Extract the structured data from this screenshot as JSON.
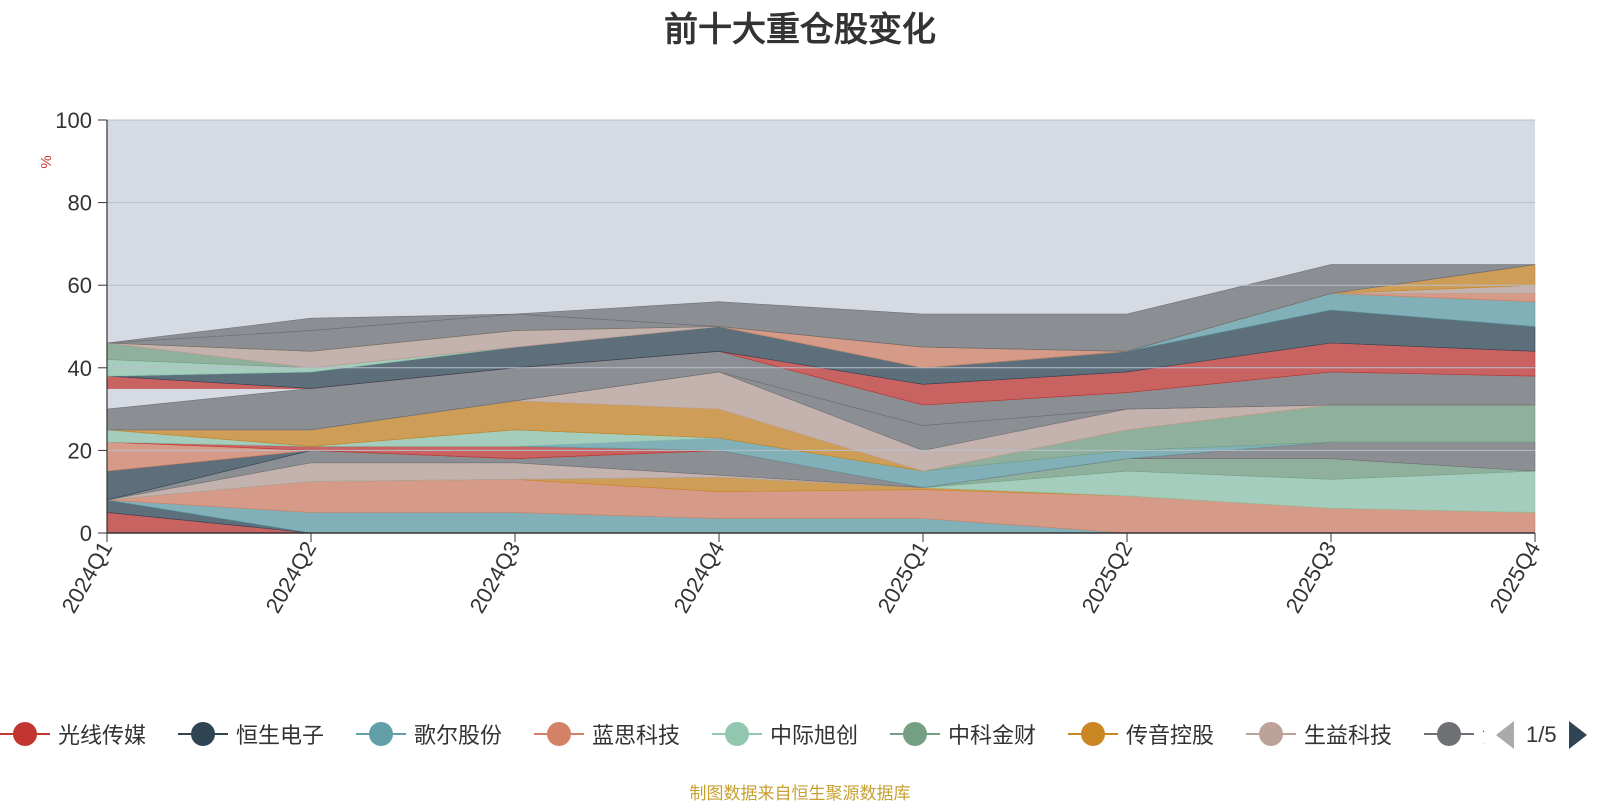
{
  "title": "前十大重仓股变化",
  "source_note": "制图数据来自恒生聚源数据库",
  "legend_page": "1/5",
  "legend": [
    {
      "name": "光线传媒",
      "color": "#c23531"
    },
    {
      "name": "恒生电子",
      "color": "#2f4554"
    },
    {
      "name": "歌尔股份",
      "color": "#61a0a8"
    },
    {
      "name": "蓝思科技",
      "color": "#d48265"
    },
    {
      "name": "中际旭创",
      "color": "#91c7ae"
    },
    {
      "name": "中科金财",
      "color": "#749f83"
    },
    {
      "name": "传音控股",
      "color": "#ca8622"
    },
    {
      "name": "生益科技",
      "color": "#bda29a"
    },
    {
      "name": "沪",
      "color": "#6e7074"
    }
  ],
  "chart_data": {
    "type": "area",
    "title": "前十大重仓股变化",
    "ylabel": "%",
    "ylim": [
      0,
      100
    ],
    "yticks": [
      0,
      20,
      40,
      60,
      80,
      100
    ],
    "categories": [
      "2024Q1",
      "2024Q2",
      "2024Q3",
      "2024Q4",
      "2025Q1",
      "2025Q2",
      "2025Q3",
      "2025Q4"
    ],
    "grid": true,
    "legend_position": "bottom",
    "plot_background": "#d6dbe3",
    "layers": [
      {
        "color": "#c23531",
        "values": [
          [
            0,
            5
          ],
          [
            0,
            0
          ],
          [
            0,
            0
          ],
          [
            0,
            0
          ],
          [
            0,
            0
          ],
          [
            0,
            0
          ],
          [
            0,
            0
          ],
          [
            0,
            0
          ]
        ]
      },
      {
        "color": "#2f4554",
        "values": [
          [
            5,
            8
          ],
          [
            0,
            0
          ],
          [
            0,
            0
          ],
          [
            0,
            0
          ],
          [
            0,
            0
          ],
          [
            0,
            0
          ],
          [
            0,
            0
          ],
          [
            0,
            0
          ]
        ]
      },
      {
        "color": "#61a0a8",
        "values": [
          [
            8,
            8
          ],
          [
            0,
            5
          ],
          [
            0,
            5
          ],
          [
            0,
            3.5
          ],
          [
            0,
            3.5
          ],
          [
            0,
            0
          ],
          [
            0,
            0
          ],
          [
            0,
            0
          ]
        ]
      },
      {
        "color": "#d48265",
        "values": [
          [
            8,
            8
          ],
          [
            5,
            12.5
          ],
          [
            5,
            13
          ],
          [
            3.5,
            10
          ],
          [
            3.5,
            10.5
          ],
          [
            0,
            9
          ],
          [
            0,
            6
          ],
          [
            0,
            5
          ]
        ]
      },
      {
        "color": "#ca8622",
        "values": [
          [
            8,
            8
          ],
          [
            12.5,
            12.5
          ],
          [
            13,
            13
          ],
          [
            10,
            13.5
          ],
          [
            10.5,
            11
          ],
          [
            9,
            9
          ],
          [
            6,
            6
          ],
          [
            5,
            5
          ]
        ]
      },
      {
        "color": "#91c7ae",
        "values": [
          [
            8,
            8
          ],
          [
            12.5,
            12.5
          ],
          [
            13,
            13
          ],
          [
            13.5,
            13.5
          ],
          [
            11,
            11
          ],
          [
            9,
            15
          ],
          [
            6,
            13
          ],
          [
            5,
            15
          ]
        ]
      },
      {
        "color": "#749f83",
        "values": [
          [
            8,
            8
          ],
          [
            12.5,
            12.5
          ],
          [
            13,
            13
          ],
          [
            13.5,
            13.5
          ],
          [
            11,
            11
          ],
          [
            15,
            18
          ],
          [
            13,
            18
          ],
          [
            15,
            15
          ]
        ]
      },
      {
        "color": "#bda29a",
        "values": [
          [
            8,
            8
          ],
          [
            12.5,
            17
          ],
          [
            13,
            17
          ],
          [
            13.5,
            14
          ],
          [
            11,
            11
          ],
          [
            18,
            18
          ],
          [
            18,
            18
          ],
          [
            15,
            15
          ]
        ]
      },
      {
        "color": "#6e7074",
        "values": [
          [
            8,
            8
          ],
          [
            17,
            20
          ],
          [
            17,
            18
          ],
          [
            14,
            20
          ],
          [
            11,
            11
          ],
          [
            18,
            18
          ],
          [
            18,
            22
          ],
          [
            15,
            22
          ]
        ]
      },
      {
        "color": "#2f4554",
        "values": [
          [
            8,
            15
          ],
          [
            20,
            20
          ],
          [
            18,
            18
          ],
          [
            20,
            20
          ],
          [
            11,
            11
          ],
          [
            18,
            18
          ],
          [
            22,
            22
          ],
          [
            22,
            22
          ]
        ]
      },
      {
        "color": "#d48265",
        "values": [
          [
            15,
            22
          ],
          [
            20,
            20
          ],
          [
            18,
            18
          ],
          [
            20,
            20
          ],
          [
            11,
            11
          ],
          [
            18,
            18
          ],
          [
            22,
            22
          ],
          [
            22,
            22
          ]
        ]
      },
      {
        "color": "#c23531",
        "values": [
          [
            22,
            22
          ],
          [
            20,
            21
          ],
          [
            18,
            21
          ],
          [
            20,
            20
          ],
          [
            11,
            11
          ],
          [
            18,
            18
          ],
          [
            22,
            22
          ],
          [
            22,
            22
          ]
        ]
      },
      {
        "color": "#61a0a8",
        "values": [
          [
            22,
            22
          ],
          [
            21,
            21
          ],
          [
            21,
            21
          ],
          [
            20,
            23
          ],
          [
            11,
            15
          ],
          [
            18,
            20
          ],
          [
            22,
            22
          ],
          [
            22,
            22
          ]
        ]
      },
      {
        "color": "#91c7ae",
        "values": [
          [
            22,
            25
          ],
          [
            21,
            21
          ],
          [
            21,
            25
          ],
          [
            23,
            23
          ],
          [
            15,
            15
          ],
          [
            20,
            20
          ],
          [
            22,
            22
          ],
          [
            22,
            22
          ]
        ]
      },
      {
        "color": "#749f83",
        "values": [
          [
            25,
            25
          ],
          [
            21,
            21
          ],
          [
            25,
            25
          ],
          [
            23,
            23
          ],
          [
            15,
            15
          ],
          [
            20,
            25
          ],
          [
            22,
            31
          ],
          [
            22,
            31
          ]
        ]
      },
      {
        "color": "#ca8622",
        "values": [
          [
            25,
            25
          ],
          [
            21,
            25
          ],
          [
            25,
            32
          ],
          [
            23,
            30
          ],
          [
            15,
            15
          ],
          [
            25,
            25
          ],
          [
            31,
            31
          ],
          [
            31,
            31
          ]
        ]
      },
      {
        "color": "#bda29a",
        "values": [
          [
            25,
            25
          ],
          [
            25,
            25
          ],
          [
            32,
            32
          ],
          [
            30,
            39
          ],
          [
            15,
            20
          ],
          [
            25,
            30
          ],
          [
            31,
            31
          ],
          [
            31,
            31
          ]
        ]
      },
      {
        "color": "#6e7074",
        "values": [
          [
            25,
            25
          ],
          [
            25,
            25
          ],
          [
            32,
            32
          ],
          [
            39,
            39
          ],
          [
            20,
            26
          ],
          [
            30,
            30
          ],
          [
            31,
            31
          ],
          [
            31,
            31
          ]
        ]
      },
      {
        "color": "#6e7074",
        "values": [
          [
            25,
            30
          ],
          [
            25,
            35
          ],
          [
            32,
            40
          ],
          [
            39,
            44
          ],
          [
            26,
            31
          ],
          [
            30,
            34
          ],
          [
            31,
            39
          ],
          [
            31,
            38
          ]
        ]
      },
      {
        "color": "#c23531",
        "values": [
          [
            35,
            38
          ],
          [
            35,
            35
          ],
          [
            40,
            40
          ],
          [
            44,
            44
          ],
          [
            31,
            36
          ],
          [
            34,
            39
          ],
          [
            39,
            46
          ],
          [
            38,
            44
          ]
        ]
      },
      {
        "color": "#2f4554",
        "values": [
          [
            38,
            38
          ],
          [
            35,
            39
          ],
          [
            40,
            45
          ],
          [
            44,
            50
          ],
          [
            36,
            40
          ],
          [
            39,
            44
          ],
          [
            46,
            54
          ],
          [
            44,
            50
          ]
        ]
      },
      {
        "color": "#61a0a8",
        "values": [
          [
            38,
            38
          ],
          [
            39,
            39
          ],
          [
            45,
            45
          ],
          [
            50,
            50
          ],
          [
            40,
            40
          ],
          [
            44,
            44
          ],
          [
            54,
            58
          ],
          [
            50,
            56
          ]
        ]
      },
      {
        "color": "#91c7ae",
        "values": [
          [
            38,
            42
          ],
          [
            39,
            40
          ],
          [
            45,
            45
          ],
          [
            50,
            50
          ],
          [
            40,
            40
          ],
          [
            44,
            44
          ],
          [
            58,
            58
          ],
          [
            56,
            56
          ]
        ]
      },
      {
        "color": "#749f83",
        "values": [
          [
            42,
            46
          ],
          [
            40,
            40
          ],
          [
            45,
            45
          ],
          [
            50,
            50
          ],
          [
            40,
            40
          ],
          [
            44,
            44
          ],
          [
            58,
            58
          ],
          [
            56,
            56
          ]
        ]
      },
      {
        "color": "#d48265",
        "values": [
          [
            46,
            46
          ],
          [
            40,
            40
          ],
          [
            45,
            45
          ],
          [
            50,
            50
          ],
          [
            40,
            45
          ],
          [
            44,
            44
          ],
          [
            58,
            58
          ],
          [
            56,
            58
          ]
        ]
      },
      {
        "color": "#bda29a",
        "values": [
          [
            46,
            46
          ],
          [
            40,
            44
          ],
          [
            45,
            49
          ],
          [
            50,
            50
          ],
          [
            45,
            45
          ],
          [
            44,
            44
          ],
          [
            58,
            58
          ],
          [
            58,
            60
          ]
        ]
      },
      {
        "color": "#ca8622",
        "values": [
          [
            46,
            46
          ],
          [
            44,
            44
          ],
          [
            49,
            49
          ],
          [
            50,
            50
          ],
          [
            45,
            45
          ],
          [
            44,
            44
          ],
          [
            58,
            58
          ],
          [
            60,
            65
          ]
        ]
      },
      {
        "color": "#6e7074",
        "values": [
          [
            46,
            46
          ],
          [
            44,
            49
          ],
          [
            49,
            53
          ],
          [
            50,
            50
          ],
          [
            45,
            45
          ],
          [
            44,
            44
          ],
          [
            58,
            58
          ],
          [
            65,
            65
          ]
        ]
      },
      {
        "color": "#6e7074",
        "values": [
          [
            46,
            46
          ],
          [
            49,
            52
          ],
          [
            53,
            53
          ],
          [
            50,
            56
          ],
          [
            45,
            53
          ],
          [
            44,
            53
          ],
          [
            58,
            65
          ],
          [
            65,
            65
          ]
        ]
      }
    ]
  }
}
